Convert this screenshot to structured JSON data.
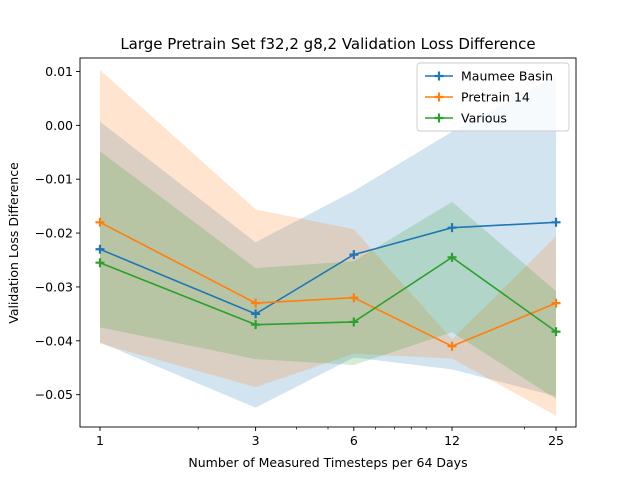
{
  "chart_data": {
    "type": "line",
    "title": "Large Pretrain Set f32,2 g8,2 Validation Loss Difference",
    "xlabel": "Number of Measured Timesteps per 64 Days",
    "ylabel": "Validation Loss Difference",
    "x_scale": "log",
    "x": [
      1,
      3,
      6,
      12,
      25
    ],
    "x_tick_labels": [
      "1",
      "3",
      "6",
      "12",
      "25"
    ],
    "ylim": [
      -0.056,
      0.0125
    ],
    "y_ticks": [
      0.01,
      0.0,
      -0.01,
      -0.02,
      -0.03,
      -0.04,
      -0.05
    ],
    "y_tick_labels": [
      "0.01",
      "0.00",
      "−0.01",
      "−0.02",
      "−0.03",
      "−0.04",
      "−0.05"
    ],
    "grid": false,
    "legend_position": "top-right",
    "series": [
      {
        "name": "Maumee Basin",
        "color": "#1f77b4",
        "marker": "plus",
        "values": [
          -0.023,
          -0.035,
          -0.024,
          -0.019,
          -0.018
        ],
        "band_upper": [
          0.0007,
          -0.0217,
          -0.0122,
          -0.0012,
          0.0092
        ],
        "band_lower": [
          -0.0403,
          -0.0524,
          -0.0431,
          -0.0453,
          -0.0503
        ]
      },
      {
        "name": "Pretrain 14",
        "color": "#ff7f0e",
        "marker": "plus",
        "values": [
          -0.018,
          -0.033,
          -0.032,
          -0.041,
          -0.033
        ],
        "band_upper": [
          0.0103,
          -0.0156,
          -0.0193,
          -0.0397,
          -0.0206
        ],
        "band_lower": [
          -0.0405,
          -0.0486,
          -0.0424,
          -0.0433,
          -0.0539
        ]
      },
      {
        "name": "Various",
        "color": "#2ca02c",
        "marker": "plus",
        "values": [
          -0.0255,
          -0.037,
          -0.0365,
          -0.0245,
          -0.0383
        ],
        "band_upper": [
          -0.0048,
          -0.0265,
          -0.0252,
          -0.0142,
          -0.0308
        ],
        "band_lower": [
          -0.0375,
          -0.0434,
          -0.0445,
          -0.0384,
          -0.0508
        ]
      }
    ]
  }
}
